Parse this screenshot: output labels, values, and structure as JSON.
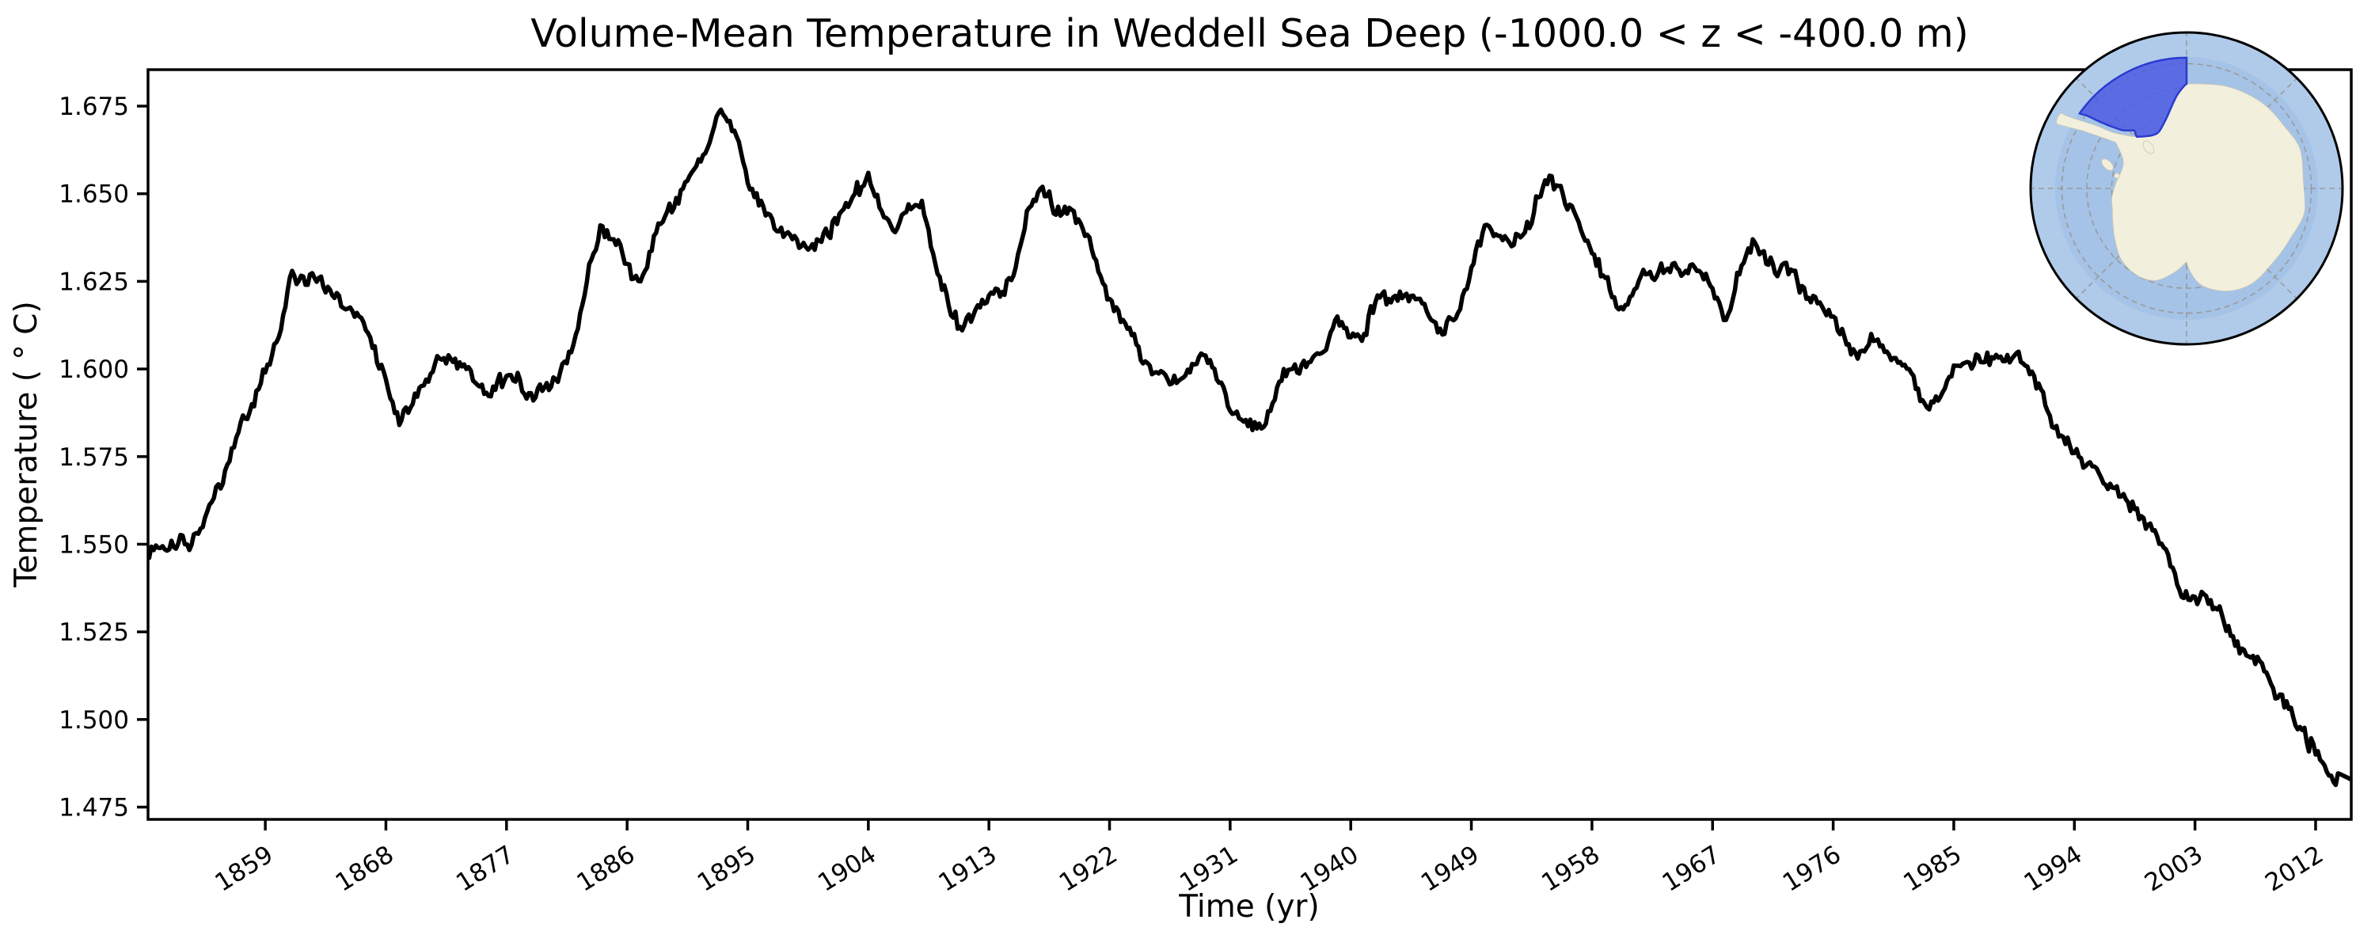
{
  "chart_data": {
    "type": "line",
    "title": "Volume-Mean Temperature in Weddell Sea Deep (-1000.0 < z < -400.0 m)",
    "xlabel": "Time (yr)",
    "ylabel": "Temperature ( ° C)",
    "xlim": [
      1850.25,
      2014.66
    ],
    "ylim": [
      1.4715,
      1.6854
    ],
    "xticks": [
      1859,
      1868,
      1877,
      1886,
      1895,
      1904,
      1913,
      1922,
      1931,
      1940,
      1949,
      1958,
      1967,
      1976,
      1985,
      1994,
      2003,
      2012
    ],
    "yticks": [
      1.475,
      1.5,
      1.525,
      1.55,
      1.575,
      1.6,
      1.625,
      1.65,
      1.675
    ],
    "grid": false,
    "legend": "none",
    "line_color": "#000000",
    "line_width": 5.5,
    "series": [
      {
        "name": "volume-mean temperature",
        "x": [
          1850,
          1851,
          1852,
          1853,
          1854,
          1855,
          1856,
          1857,
          1858,
          1859,
          1860,
          1861,
          1862,
          1863,
          1864,
          1865,
          1866,
          1867,
          1868,
          1869,
          1870,
          1871,
          1872,
          1873,
          1874,
          1875,
          1876,
          1877,
          1878,
          1879,
          1880,
          1881,
          1882,
          1883,
          1884,
          1885,
          1886,
          1887,
          1888,
          1889,
          1890,
          1891,
          1892,
          1893,
          1894,
          1895,
          1896,
          1897,
          1898,
          1899,
          1900,
          1901,
          1902,
          1903,
          1904,
          1905,
          1906,
          1907,
          1908,
          1909,
          1910,
          1911,
          1912,
          1913,
          1914,
          1915,
          1916,
          1917,
          1918,
          1919,
          1920,
          1921,
          1922,
          1923,
          1924,
          1925,
          1926,
          1927,
          1928,
          1929,
          1930,
          1931,
          1932,
          1933,
          1934,
          1935,
          1936,
          1937,
          1938,
          1939,
          1940,
          1941,
          1942,
          1943,
          1944,
          1945,
          1946,
          1947,
          1948,
          1949,
          1950,
          1951,
          1952,
          1953,
          1954,
          1955,
          1956,
          1957,
          1958,
          1959,
          1960,
          1961,
          1962,
          1963,
          1964,
          1965,
          1966,
          1967,
          1968,
          1969,
          1970,
          1971,
          1972,
          1973,
          1974,
          1975,
          1976,
          1977,
          1978,
          1979,
          1980,
          1981,
          1982,
          1983,
          1984,
          1985,
          1986,
          1987,
          1988,
          1989,
          1990,
          1991,
          1992,
          1993,
          1994,
          1995,
          1996,
          1997,
          1998,
          1999,
          2000,
          2001,
          2002,
          2003,
          2004,
          2005,
          2006,
          2007,
          2008,
          2009,
          2010,
          2011,
          2012,
          2013,
          2014
        ],
        "values": [
          1.546,
          1.549,
          1.551,
          1.55,
          1.553,
          1.562,
          1.571,
          1.582,
          1.59,
          1.599,
          1.609,
          1.628,
          1.624,
          1.626,
          1.621,
          1.617,
          1.615,
          1.606,
          1.597,
          1.584,
          1.59,
          1.597,
          1.603,
          1.602,
          1.6,
          1.595,
          1.595,
          1.598,
          1.597,
          1.591,
          1.596,
          1.599,
          1.607,
          1.625,
          1.641,
          1.637,
          1.63,
          1.625,
          1.638,
          1.645,
          1.651,
          1.657,
          1.663,
          1.674,
          1.668,
          1.653,
          1.648,
          1.64,
          1.639,
          1.635,
          1.634,
          1.638,
          1.645,
          1.65,
          1.656,
          1.645,
          1.639,
          1.647,
          1.648,
          1.63,
          1.618,
          1.611,
          1.617,
          1.621,
          1.622,
          1.629,
          1.646,
          1.652,
          1.644,
          1.646,
          1.64,
          1.631,
          1.62,
          1.614,
          1.607,
          1.601,
          1.599,
          1.596,
          1.599,
          1.604,
          1.597,
          1.588,
          1.585,
          1.583,
          1.588,
          1.6,
          1.599,
          1.602,
          1.605,
          1.615,
          1.609,
          1.61,
          1.621,
          1.619,
          1.621,
          1.62,
          1.614,
          1.61,
          1.616,
          1.629,
          1.641,
          1.638,
          1.635,
          1.639,
          1.649,
          1.655,
          1.647,
          1.642,
          1.633,
          1.626,
          1.617,
          1.621,
          1.627,
          1.628,
          1.63,
          1.628,
          1.628,
          1.623,
          1.614,
          1.627,
          1.637,
          1.63,
          1.628,
          1.628,
          1.62,
          1.619,
          1.615,
          1.607,
          1.605,
          1.608,
          1.605,
          1.602,
          1.598,
          1.589,
          1.592,
          1.601,
          1.602,
          1.602,
          1.603,
          1.604,
          1.602,
          1.598,
          1.588,
          1.581,
          1.576,
          1.573,
          1.569,
          1.566,
          1.562,
          1.558,
          1.554,
          1.547,
          1.535,
          1.535,
          1.533,
          1.53,
          1.521,
          1.518,
          1.516,
          1.506,
          1.503,
          1.497,
          1.49,
          1.484,
          1.483
        ]
      }
    ]
  },
  "inset_map": {
    "ocean_color": "#b0cbea",
    "inner_ocean_color": "#a5c3e7",
    "land_color": "#f2efdc",
    "region_fill_color": "#4d5ce2",
    "region_border_color": "#2b3bd0",
    "graticule_color": "#9a9a9a",
    "border_color": "#000000"
  }
}
